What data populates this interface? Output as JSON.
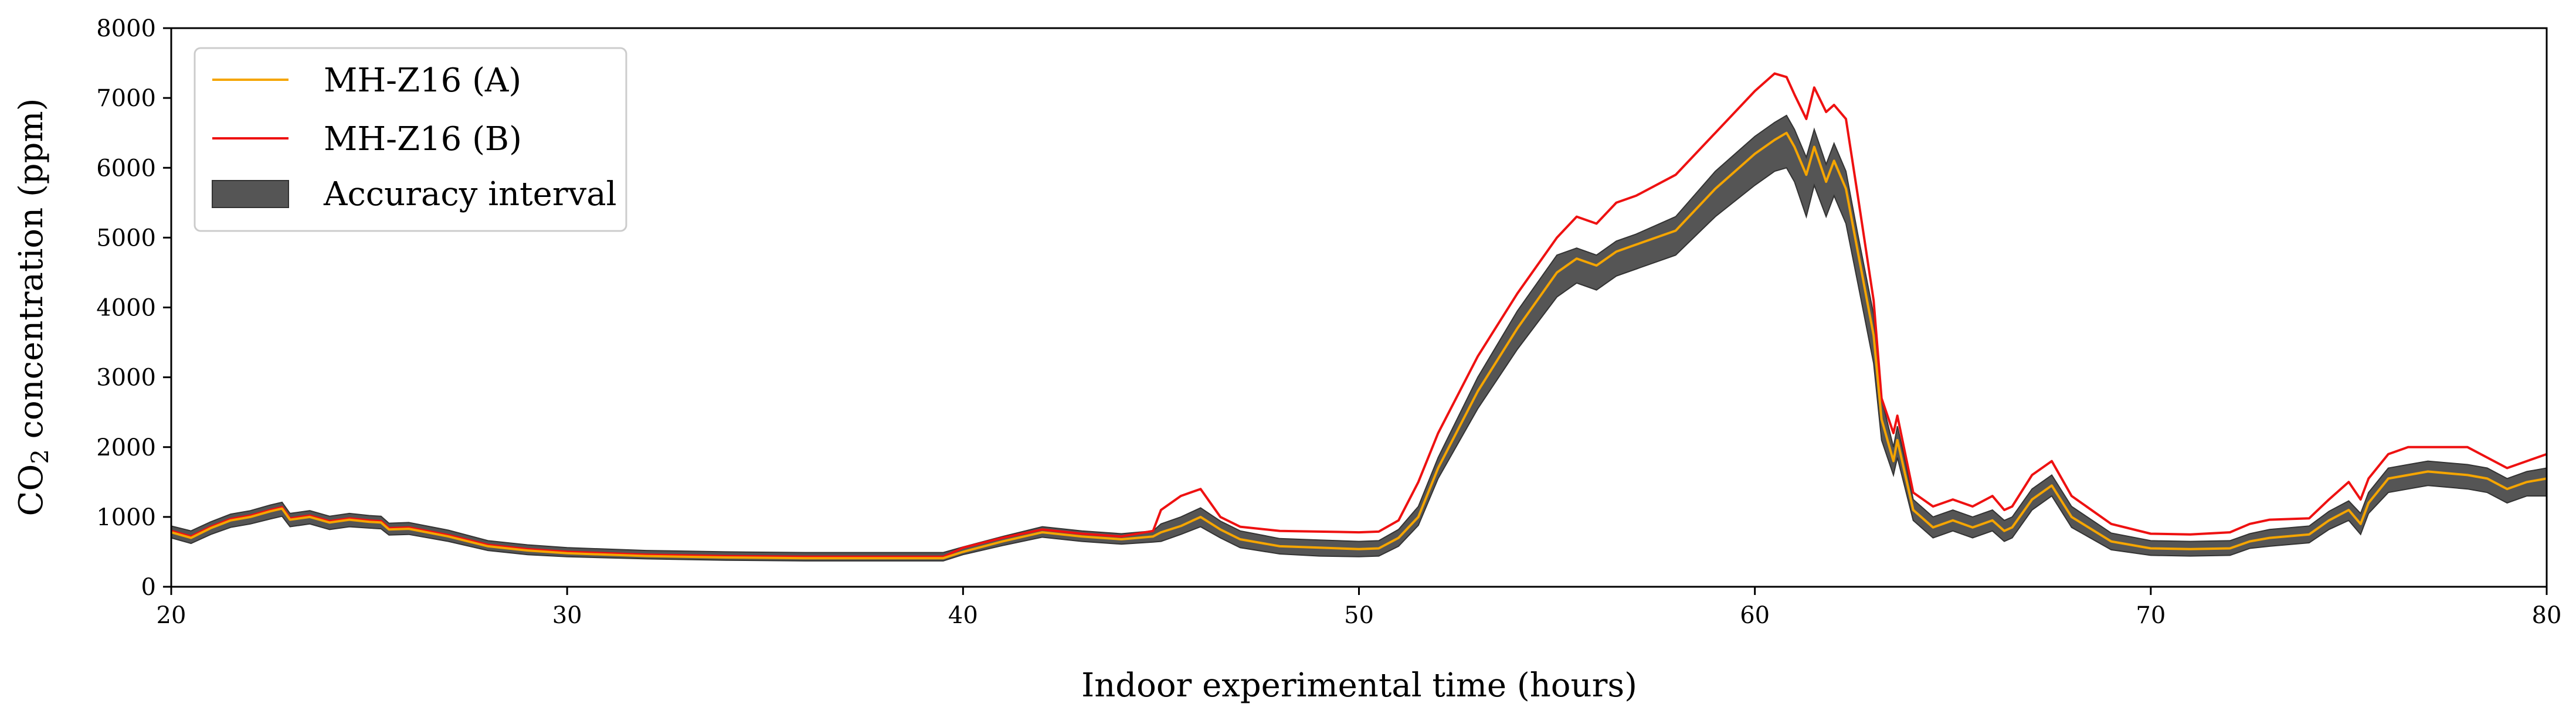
{
  "chart_data": {
    "type": "line",
    "title": "",
    "xlabel": "Indoor experimental time (hours)",
    "ylabel": "CO",
    "ylabel_sub": "2",
    "ylabel_rest": " concentration (ppm)",
    "xlim": [
      20,
      80
    ],
    "ylim": [
      0,
      8000
    ],
    "xticks": [
      20,
      30,
      40,
      50,
      60,
      70,
      80
    ],
    "yticks": [
      0,
      1000,
      2000,
      3000,
      4000,
      5000,
      6000,
      7000,
      8000
    ],
    "grid": false,
    "legend_position": "top-left",
    "legend": [
      {
        "label": "MH-Z16 (A)",
        "kind": "line",
        "color": "#f5a500"
      },
      {
        "label": "MH-Z16 (B)",
        "kind": "line",
        "color": "#ee1111"
      },
      {
        "label": "Accuracy interval",
        "kind": "patch",
        "color": "#555555"
      }
    ],
    "series": [
      {
        "name": "MH-Z16 (A)",
        "color": "#f5a500",
        "x": [
          20,
          20.5,
          21,
          21.5,
          22,
          22.5,
          22.8,
          23,
          23.5,
          24,
          24.5,
          25,
          25.3,
          25.5,
          26,
          27,
          28,
          29,
          30,
          32,
          34,
          36,
          38,
          39.5,
          40,
          41,
          42,
          43,
          44,
          44.8,
          45,
          45.5,
          46,
          46.5,
          47,
          48,
          49,
          50,
          50.5,
          51,
          51.5,
          52,
          53,
          54,
          55,
          55.5,
          56,
          56.5,
          57,
          58,
          59,
          60,
          60.5,
          60.8,
          61,
          61.3,
          61.5,
          61.8,
          62,
          62.3,
          62.6,
          63,
          63.2,
          63.5,
          63.6,
          63.8,
          64,
          64.5,
          65,
          65.5,
          66,
          66.3,
          66.5,
          67,
          67.5,
          68,
          69,
          70,
          71,
          72,
          72.5,
          73,
          74,
          74.5,
          75,
          75.3,
          75.5,
          76,
          76.5,
          77,
          78,
          78.5,
          79,
          79.5,
          80
        ],
        "y": [
          780,
          700,
          840,
          950,
          1000,
          1080,
          1120,
          960,
          1000,
          920,
          960,
          930,
          920,
          820,
          830,
          720,
          580,
          520,
          480,
          440,
          420,
          410,
          410,
          410,
          500,
          650,
          780,
          720,
          680,
          720,
          780,
          870,
          1000,
          820,
          680,
          580,
          560,
          540,
          550,
          700,
          1000,
          1700,
          2800,
          3700,
          4500,
          4700,
          4600,
          4800,
          4900,
          5100,
          5700,
          6200,
          6400,
          6500,
          6300,
          5900,
          6300,
          5800,
          6100,
          5700,
          4800,
          3600,
          2400,
          1800,
          2100,
          1600,
          1100,
          850,
          950,
          850,
          950,
          800,
          850,
          1250,
          1450,
          1000,
          650,
          550,
          540,
          550,
          650,
          700,
          750,
          950,
          1100,
          900,
          1200,
          1550,
          1600,
          1650,
          1600,
          1550,
          1400,
          1500,
          1550
        ]
      },
      {
        "name": "MH-Z16 (B)",
        "color": "#ee1111",
        "x": [
          20,
          20.5,
          21,
          21.5,
          22,
          22.5,
          22.8,
          23,
          23.5,
          24,
          24.5,
          25,
          25.3,
          25.5,
          26,
          27,
          28,
          29,
          30,
          32,
          34,
          36,
          38,
          39.5,
          40,
          41,
          42,
          43,
          44,
          44.8,
          45,
          45.5,
          46,
          46.5,
          47,
          48,
          49,
          50,
          50.5,
          51,
          51.5,
          52,
          53,
          54,
          55,
          55.5,
          56,
          56.5,
          57,
          58,
          59,
          60,
          60.5,
          60.8,
          61,
          61.3,
          61.5,
          61.8,
          62,
          62.3,
          62.6,
          63,
          63.2,
          63.5,
          63.6,
          63.8,
          64,
          64.5,
          65,
          65.5,
          66,
          66.3,
          66.5,
          67,
          67.5,
          68,
          69,
          70,
          71,
          72,
          72.5,
          73,
          74,
          74.5,
          75,
          75.3,
          75.5,
          76,
          76.5,
          77,
          78,
          78.5,
          79,
          79.5,
          80
        ],
        "y": [
          800,
          720,
          860,
          970,
          1020,
          1100,
          1140,
          980,
          1020,
          940,
          980,
          950,
          940,
          840,
          850,
          740,
          600,
          540,
          500,
          460,
          440,
          430,
          430,
          430,
          560,
          700,
          820,
          760,
          720,
          800,
          1100,
          1300,
          1400,
          1000,
          860,
          800,
          790,
          780,
          790,
          950,
          1500,
          2200,
          3300,
          4200,
          5000,
          5300,
          5200,
          5500,
          5600,
          5900,
          6500,
          7100,
          7350,
          7300,
          7050,
          6700,
          7150,
          6800,
          6900,
          6700,
          5600,
          4100,
          2700,
          2200,
          2450,
          1900,
          1350,
          1150,
          1250,
          1150,
          1300,
          1100,
          1150,
          1600,
          1800,
          1300,
          900,
          760,
          750,
          780,
          900,
          960,
          980,
          1250,
          1500,
          1250,
          1550,
          1900,
          2000,
          2000,
          2000,
          1850,
          1700,
          1800,
          1900
        ]
      }
    ],
    "band": {
      "name": "Accuracy interval",
      "color": "#555555",
      "x": [
        20,
        20.5,
        21,
        21.5,
        22,
        22.5,
        22.8,
        23,
        23.5,
        24,
        24.5,
        25,
        25.3,
        25.5,
        26,
        27,
        28,
        29,
        30,
        32,
        34,
        36,
        38,
        39.5,
        40,
        41,
        42,
        43,
        44,
        44.8,
        45,
        45.5,
        46,
        46.5,
        47,
        48,
        49,
        50,
        50.5,
        51,
        51.5,
        52,
        53,
        54,
        55,
        55.5,
        56,
        56.5,
        57,
        58,
        59,
        60,
        60.5,
        60.8,
        61,
        61.3,
        61.5,
        61.8,
        62,
        62.3,
        62.6,
        63,
        63.2,
        63.5,
        63.6,
        63.8,
        64,
        64.5,
        65,
        65.5,
        66,
        66.3,
        66.5,
        67,
        67.5,
        68,
        69,
        70,
        71,
        72,
        72.5,
        73,
        74,
        74.5,
        75,
        75.3,
        75.5,
        76,
        76.5,
        77,
        78,
        78.5,
        79,
        79.5,
        80
      ],
      "lower": [
        700,
        620,
        750,
        850,
        900,
        970,
        1010,
        860,
        900,
        820,
        860,
        840,
        830,
        740,
        750,
        650,
        520,
        460,
        430,
        400,
        380,
        370,
        370,
        370,
        460,
        590,
        710,
        650,
        610,
        640,
        650,
        750,
        860,
        700,
        560,
        470,
        440,
        430,
        440,
        580,
        880,
        1550,
        2550,
        3400,
        4150,
        4350,
        4250,
        4450,
        4550,
        4750,
        5300,
        5750,
        5950,
        6000,
        5800,
        5300,
        5750,
        5300,
        5600,
        5200,
        4350,
        3200,
        2100,
        1600,
        1850,
        1400,
        950,
        700,
        800,
        700,
        800,
        650,
        700,
        1100,
        1300,
        850,
        530,
        450,
        440,
        450,
        550,
        580,
        630,
        820,
        950,
        750,
        1050,
        1350,
        1400,
        1450,
        1400,
        1350,
        1200,
        1300,
        1300
      ],
      "upper": [
        870,
        800,
        930,
        1040,
        1090,
        1170,
        1210,
        1050,
        1090,
        1010,
        1050,
        1020,
        1010,
        910,
        920,
        810,
        660,
        600,
        560,
        520,
        500,
        490,
        490,
        490,
        570,
        720,
        860,
        800,
        760,
        800,
        900,
        1000,
        1130,
        940,
        800,
        690,
        670,
        650,
        660,
        820,
        1150,
        1850,
        3000,
        3950,
        4750,
        4850,
        4750,
        4950,
        5050,
        5300,
        5950,
        6450,
        6650,
        6750,
        6550,
        6150,
        6550,
        6050,
        6350,
        5950,
        5050,
        3900,
        2700,
        2000,
        2300,
        1800,
        1250,
        1000,
        1100,
        1000,
        1100,
        950,
        1000,
        1400,
        1600,
        1150,
        770,
        660,
        650,
        660,
        760,
        820,
        870,
        1080,
        1230,
        1050,
        1350,
        1700,
        1750,
        1800,
        1750,
        1700,
        1550,
        1650,
        1700
      ]
    }
  }
}
